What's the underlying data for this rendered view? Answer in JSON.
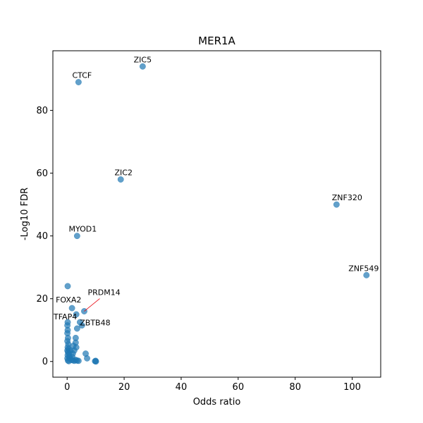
{
  "chart_data": {
    "type": "scatter",
    "title": "MER1A",
    "xlabel": "Odds ratio",
    "ylabel": "-Log10 FDR",
    "xlim": [
      -5,
      110
    ],
    "ylim": [
      -5,
      99
    ],
    "xticks": [
      0,
      20,
      40,
      60,
      80,
      100
    ],
    "yticks": [
      0,
      20,
      40,
      60,
      80
    ],
    "grid": false,
    "point_color": "#1f77b4",
    "points": [
      {
        "x": 26.5,
        "y": 94,
        "label": "ZIC5"
      },
      {
        "x": 4.0,
        "y": 89,
        "label": "CTCF"
      },
      {
        "x": 18.8,
        "y": 58,
        "label": "ZIC2"
      },
      {
        "x": 94.5,
        "y": 50,
        "label": "ZNF320"
      },
      {
        "x": 3.5,
        "y": 40,
        "label": "MYOD1"
      },
      {
        "x": 105,
        "y": 27.5,
        "label": "ZNF549"
      },
      {
        "x": 0.2,
        "y": 24,
        "label": ""
      },
      {
        "x": 1.7,
        "y": 17,
        "label": "FOXA2"
      },
      {
        "x": 6.0,
        "y": 16,
        "label": "PRDM14"
      },
      {
        "x": 3.2,
        "y": 15,
        "label": ""
      },
      {
        "x": 0.2,
        "y": 12.5,
        "label": "TFAP4"
      },
      {
        "x": 5.2,
        "y": 11.5,
        "label": "ZBTB48"
      },
      {
        "x": 4.5,
        "y": 12.5,
        "label": ""
      },
      {
        "x": 3.5,
        "y": 10.5,
        "label": ""
      },
      {
        "x": 0.1,
        "y": 11.5,
        "label": ""
      },
      {
        "x": 0.2,
        "y": 10,
        "label": ""
      },
      {
        "x": 0.1,
        "y": 9,
        "label": ""
      },
      {
        "x": 0.3,
        "y": 7.5,
        "label": ""
      },
      {
        "x": 0.1,
        "y": 6.5,
        "label": ""
      },
      {
        "x": 0.4,
        "y": 5.5,
        "label": ""
      },
      {
        "x": 0.2,
        "y": 4.5,
        "label": ""
      },
      {
        "x": 0.5,
        "y": 4,
        "label": ""
      },
      {
        "x": 0.1,
        "y": 3.5,
        "label": ""
      },
      {
        "x": 0.3,
        "y": 3,
        "label": ""
      },
      {
        "x": 0.6,
        "y": 2.5,
        "label": ""
      },
      {
        "x": 0.2,
        "y": 2,
        "label": ""
      },
      {
        "x": 0.8,
        "y": 1.5,
        "label": ""
      },
      {
        "x": 0.1,
        "y": 1,
        "label": ""
      },
      {
        "x": 1.0,
        "y": 1,
        "label": ""
      },
      {
        "x": 1.5,
        "y": 0.5,
        "label": ""
      },
      {
        "x": 0.3,
        "y": 0.3,
        "label": ""
      },
      {
        "x": 2.0,
        "y": 0.4,
        "label": ""
      },
      {
        "x": 2.5,
        "y": 0.2,
        "label": ""
      },
      {
        "x": 0.6,
        "y": 0.1,
        "label": ""
      },
      {
        "x": 3.0,
        "y": 0.5,
        "label": ""
      },
      {
        "x": 3.5,
        "y": 0.3,
        "label": ""
      },
      {
        "x": 4.0,
        "y": 0.2,
        "label": ""
      },
      {
        "x": 1.2,
        "y": 3.5,
        "label": ""
      },
      {
        "x": 2.0,
        "y": 2.5,
        "label": ""
      },
      {
        "x": 2.5,
        "y": 3.5,
        "label": ""
      },
      {
        "x": 3.0,
        "y": 7.5,
        "label": ""
      },
      {
        "x": 3.0,
        "y": 6,
        "label": ""
      },
      {
        "x": 2.2,
        "y": 5,
        "label": ""
      },
      {
        "x": 3.2,
        "y": 4.5,
        "label": ""
      },
      {
        "x": 1.8,
        "y": 1.5,
        "label": ""
      },
      {
        "x": 6.5,
        "y": 2.5,
        "label": ""
      },
      {
        "x": 7.0,
        "y": 1,
        "label": ""
      },
      {
        "x": 10,
        "y": 0.2,
        "label": ""
      },
      {
        "x": 9.8,
        "y": 0.1,
        "label": ""
      },
      {
        "x": 10.1,
        "y": 0,
        "label": ""
      }
    ],
    "leader_line": {
      "from_label": "PRDM14",
      "color": "#e8000b"
    }
  }
}
